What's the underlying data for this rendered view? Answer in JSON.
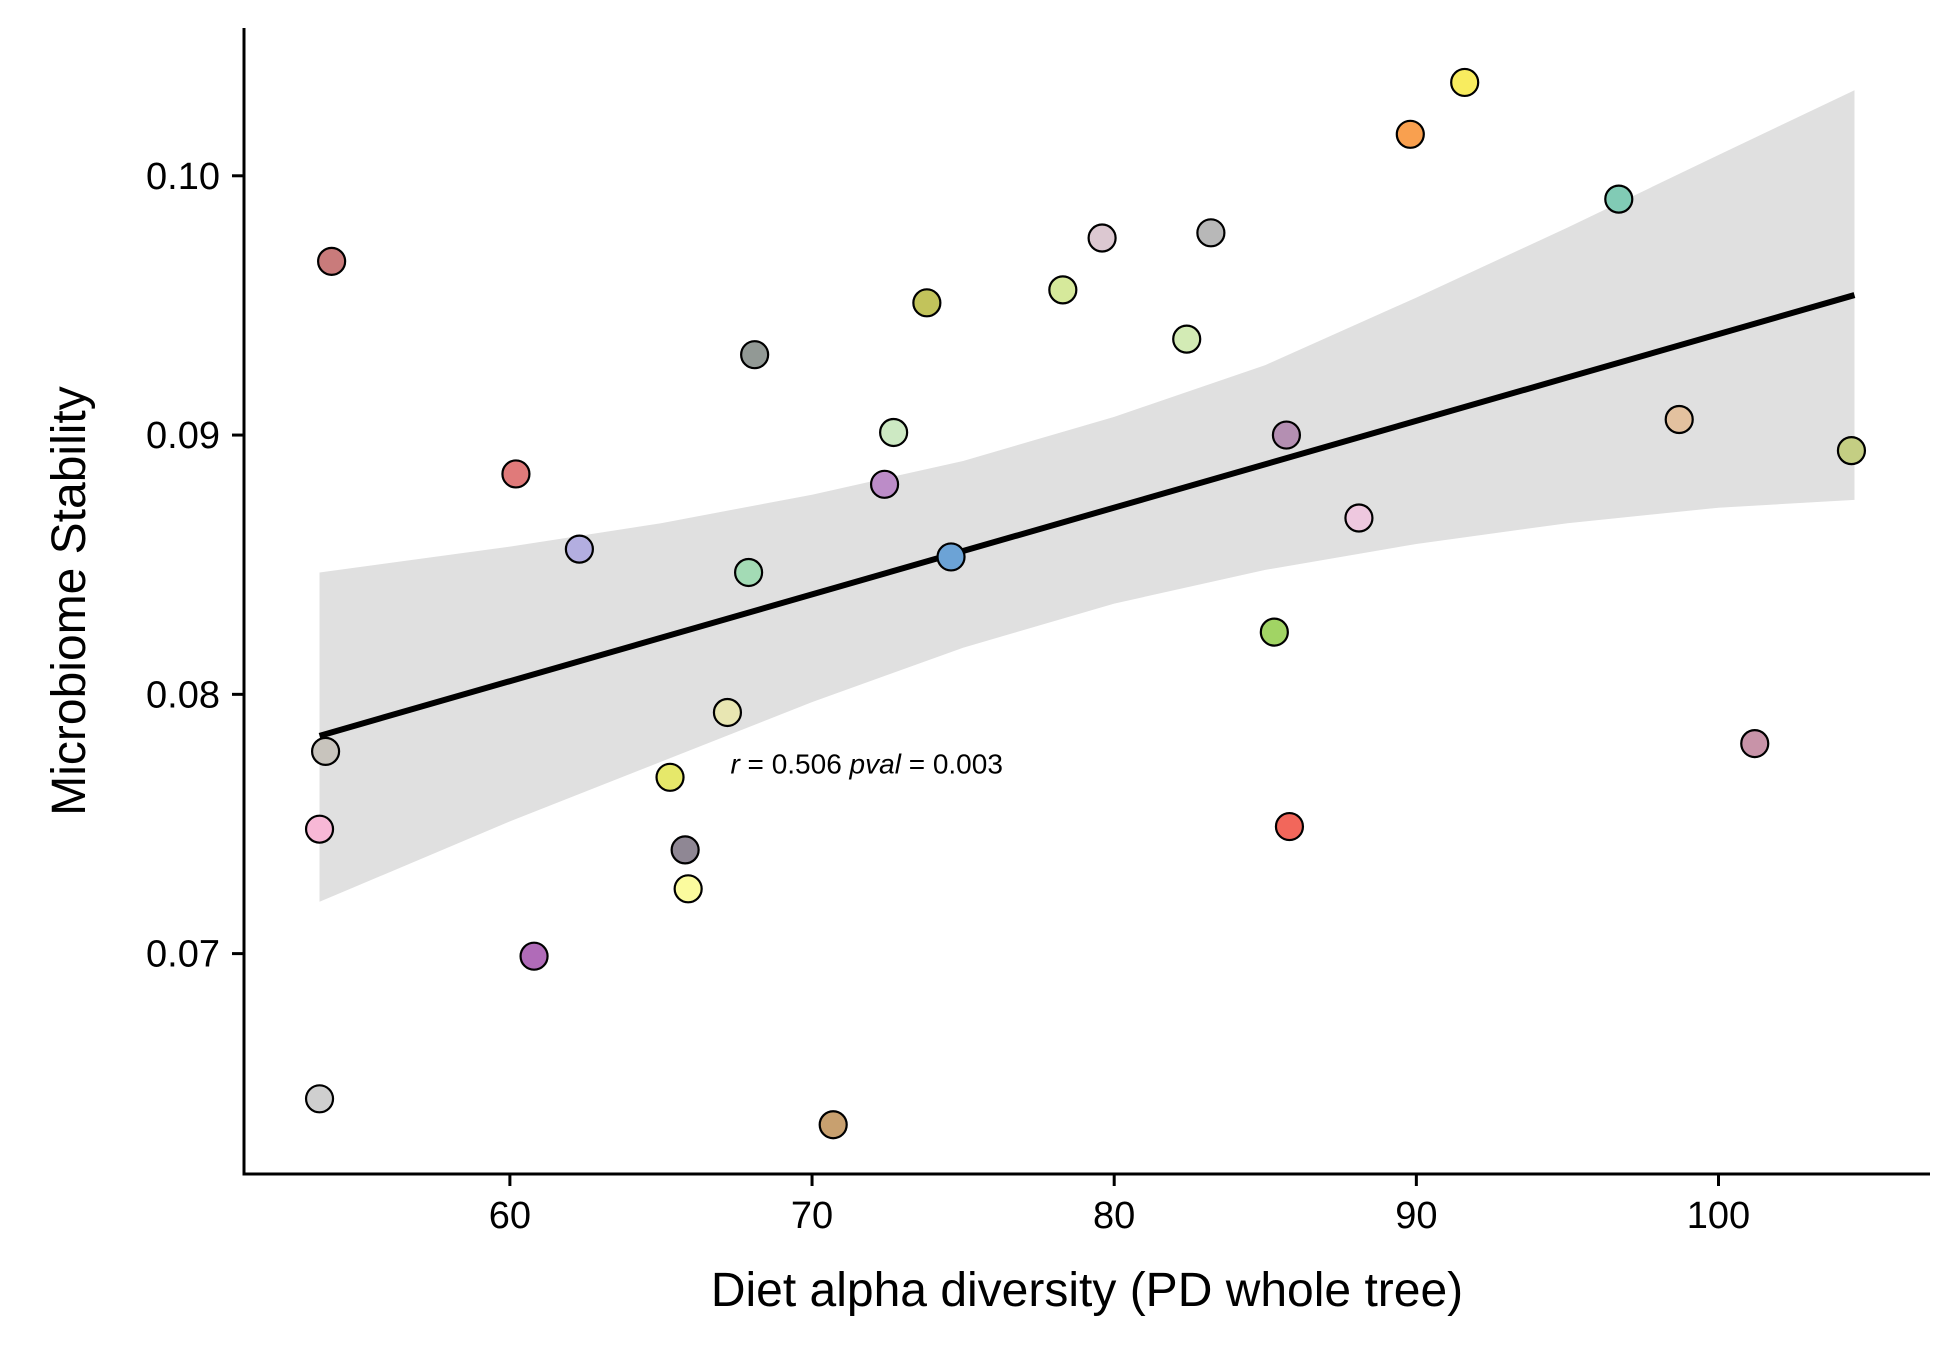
{
  "chart_data": {
    "type": "scatter",
    "title": "",
    "xlabel": "Diet alpha diversity (PD whole tree)",
    "ylabel": "Microbiome Stability",
    "xlim": [
      51.2,
      107.0
    ],
    "ylim": [
      0.0615,
      0.1057
    ],
    "x_ticks": [
      60,
      70,
      80,
      90,
      100
    ],
    "x_tick_labels": [
      "60",
      "70",
      "80",
      "90",
      "100"
    ],
    "y_ticks": [
      0.07,
      0.08,
      0.09,
      0.1
    ],
    "y_tick_labels": [
      "0.07",
      "0.08",
      "0.09",
      "0.10"
    ],
    "grid": false,
    "legend": "none",
    "annotation": {
      "r_symbol": "r",
      "r_text": " = 0.506 ",
      "p_symbol": "pval",
      "p_text": " = 0.003",
      "x": 67.3,
      "y": 0.0773
    },
    "trend_line": {
      "x": [
        53.7,
        104.5
      ],
      "y": [
        0.0784,
        0.0954
      ],
      "color": "#000000"
    },
    "confidence_band": {
      "color": "#e0e0e0",
      "x": [
        53.7,
        60,
        65,
        70,
        75,
        80,
        85,
        90,
        95,
        100,
        104.5
      ],
      "upper": [
        0.0847,
        0.0857,
        0.0866,
        0.0877,
        0.089,
        0.0907,
        0.0927,
        0.0953,
        0.098,
        0.1008,
        0.1033
      ],
      "lower": [
        0.072,
        0.0751,
        0.0774,
        0.0797,
        0.0818,
        0.0835,
        0.0848,
        0.0858,
        0.0866,
        0.0872,
        0.0875
      ]
    },
    "points": [
      {
        "x": 54.1,
        "y": 0.0967,
        "color": "#c97b7b"
      },
      {
        "x": 53.9,
        "y": 0.0778,
        "color": "#c8c4bd"
      },
      {
        "x": 53.7,
        "y": 0.0748,
        "color": "#f7b8d6"
      },
      {
        "x": 53.7,
        "y": 0.0644,
        "color": "#cfcfcf"
      },
      {
        "x": 60.2,
        "y": 0.0885,
        "color": "#e07a7a"
      },
      {
        "x": 60.8,
        "y": 0.0699,
        "color": "#b06bb8"
      },
      {
        "x": 62.3,
        "y": 0.0856,
        "color": "#b3aee0"
      },
      {
        "x": 65.3,
        "y": 0.0768,
        "color": "#e6e86a"
      },
      {
        "x": 65.8,
        "y": 0.074,
        "color": "#8f8794"
      },
      {
        "x": 65.9,
        "y": 0.0725,
        "color": "#fbfb9e"
      },
      {
        "x": 67.2,
        "y": 0.0793,
        "color": "#e8e6b2"
      },
      {
        "x": 67.9,
        "y": 0.0847,
        "color": "#a3dbb5"
      },
      {
        "x": 68.1,
        "y": 0.0931,
        "color": "#929995"
      },
      {
        "x": 70.7,
        "y": 0.0634,
        "color": "#c8a06f"
      },
      {
        "x": 72.4,
        "y": 0.0881,
        "color": "#bc8cc8"
      },
      {
        "x": 72.7,
        "y": 0.0901,
        "color": "#cde9c3"
      },
      {
        "x": 73.8,
        "y": 0.0951,
        "color": "#c2c35b"
      },
      {
        "x": 74.6,
        "y": 0.0853,
        "color": "#6ca3d6"
      },
      {
        "x": 78.3,
        "y": 0.0956,
        "color": "#d6e99b"
      },
      {
        "x": 79.6,
        "y": 0.0976,
        "color": "#dcc8d1"
      },
      {
        "x": 82.4,
        "y": 0.0937,
        "color": "#d3ebb5"
      },
      {
        "x": 83.2,
        "y": 0.0978,
        "color": "#b8b8b8"
      },
      {
        "x": 85.3,
        "y": 0.0824,
        "color": "#a1d464"
      },
      {
        "x": 85.7,
        "y": 0.09,
        "color": "#b48fb2"
      },
      {
        "x": 85.8,
        "y": 0.0749,
        "color": "#f2675b"
      },
      {
        "x": 88.1,
        "y": 0.0868,
        "color": "#eec8df"
      },
      {
        "x": 89.8,
        "y": 0.1016,
        "color": "#f9a04f"
      },
      {
        "x": 91.6,
        "y": 0.1036,
        "color": "#f8ec5f"
      },
      {
        "x": 96.7,
        "y": 0.0991,
        "color": "#81cbb5"
      },
      {
        "x": 98.7,
        "y": 0.0906,
        "color": "#e3c19f"
      },
      {
        "x": 101.2,
        "y": 0.0781,
        "color": "#c893a8"
      },
      {
        "x": 104.4,
        "y": 0.0894,
        "color": "#c4ce83"
      }
    ]
  }
}
